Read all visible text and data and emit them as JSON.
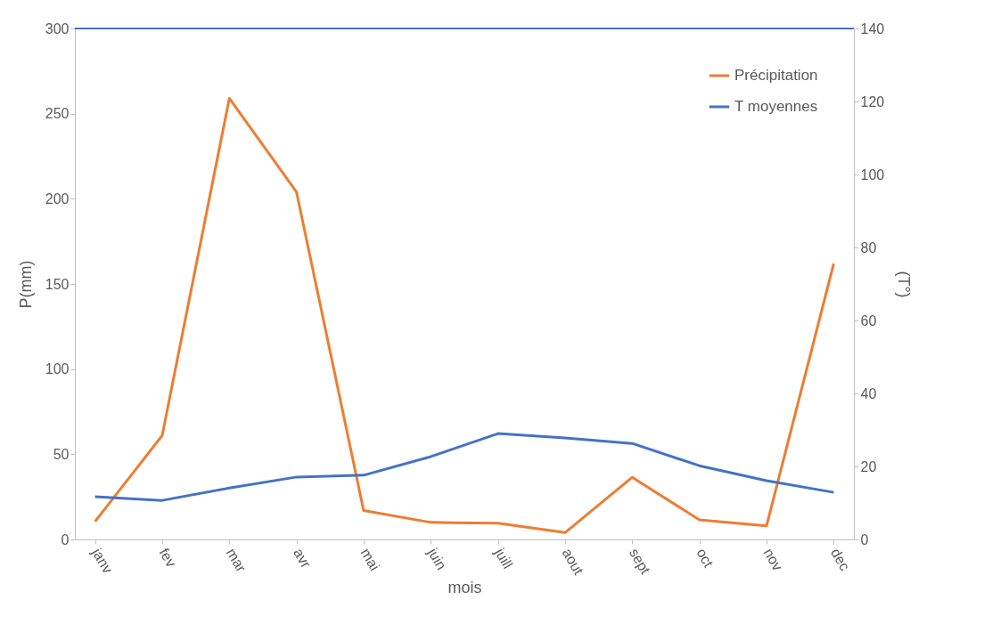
{
  "chart_data": {
    "type": "line",
    "xlabel": "mois",
    "ylabel": "P(mm)",
    "y2label": "(T°)",
    "categories": [
      "janv",
      "fev",
      "mar",
      "avr",
      "mai",
      "juin",
      "juill",
      "aout",
      "sept",
      "oct",
      "nov",
      "dec"
    ],
    "series": [
      {
        "name": "Précipitation",
        "color": "#ed7d31",
        "values": [
          10.5,
          61,
          259,
          204,
          17,
          10,
          9.5,
          4,
          36.5,
          11.5,
          8,
          162
        ]
      },
      {
        "name": "T moyennes",
        "color": "#4472c4",
        "axis": "y2",
        "values": [
          11.7,
          10.7,
          14.1,
          17.1,
          17.6,
          22.7,
          29,
          27.8,
          26.3,
          20.2,
          16.1,
          12.9
        ]
      }
    ],
    "ylim": [
      0,
      300
    ],
    "yticks": [
      0,
      50,
      100,
      150,
      200,
      250,
      300
    ],
    "y2lim": [
      0,
      140
    ],
    "y2ticks": [
      0,
      20,
      40,
      60,
      80,
      100,
      120,
      140
    ],
    "ref_lines": [
      {
        "axis": "y2",
        "value": 140,
        "color": "#4472c4"
      }
    ],
    "grid": false,
    "legend": "top right",
    "marker": "none",
    "line_style": "solid"
  }
}
